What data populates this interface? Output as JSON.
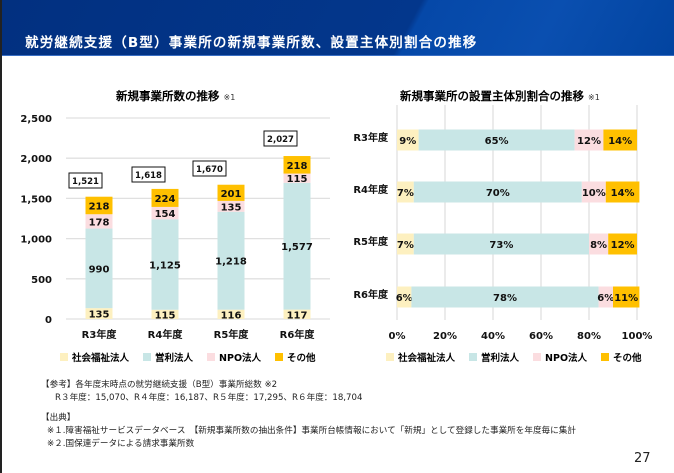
{
  "header": {
    "title": "就労継続支援（B型）事業所の新規事業所数、設置主体別割合の推移"
  },
  "colors": {
    "social_welfare": "#fdf0c0",
    "for_profit": "#c8e6e6",
    "npo": "#fbdde0",
    "other": "#ffc000",
    "gridline": "#e0e0e0"
  },
  "chart_data": [
    {
      "type": "bar",
      "stacked": true,
      "title": "新規事業所数の推移",
      "title_note": "※1",
      "categories": [
        "R3年度",
        "R4年度",
        "R5年度",
        "R6年度"
      ],
      "series": [
        {
          "name": "社会福祉法人",
          "values": [
            135,
            115,
            116,
            117
          ]
        },
        {
          "name": "営利法人",
          "values": [
            990,
            1125,
            1218,
            1577
          ]
        },
        {
          "name": "NPO法人",
          "values": [
            178,
            154,
            135,
            115
          ]
        },
        {
          "name": "その他",
          "values": [
            218,
            224,
            201,
            218
          ]
        }
      ],
      "totals": [
        1521,
        1618,
        1670,
        2027
      ],
      "total_labels": [
        "1,521",
        "1,618",
        "1,670",
        "2,027"
      ],
      "value_labels": [
        [
          "135",
          "115",
          "116",
          "117"
        ],
        [
          "990",
          "1,125",
          "1,218",
          "1,577"
        ],
        [
          "178",
          "154",
          "135",
          "115"
        ],
        [
          "218",
          "224",
          "201",
          "218"
        ]
      ],
      "yticks": [
        0,
        500,
        1000,
        1500,
        2000,
        2500
      ],
      "ytick_labels": [
        "0",
        "500",
        "1,000",
        "1,500",
        "2,000",
        "2,500"
      ],
      "ylim": [
        0,
        2500
      ],
      "xlabel": "",
      "ylabel": "",
      "grid": true,
      "legend_position": "bottom"
    },
    {
      "type": "bar",
      "orientation": "horizontal",
      "stacked": true,
      "percent": true,
      "title": "新規事業所の設置主体別割合の推移",
      "title_note": "※1",
      "categories": [
        "R3年度",
        "R4年度",
        "R5年度",
        "R6年度"
      ],
      "series": [
        {
          "name": "社会福祉法人",
          "values": [
            9,
            7,
            7,
            6
          ]
        },
        {
          "name": "営利法人",
          "values": [
            65,
            70,
            73,
            78
          ]
        },
        {
          "name": "NPO法人",
          "values": [
            12,
            10,
            8,
            6
          ]
        },
        {
          "name": "その他",
          "values": [
            14,
            14,
            12,
            11
          ]
        }
      ],
      "xticks": [
        0,
        20,
        40,
        60,
        80,
        100
      ],
      "xtick_labels": [
        "0%",
        "20%",
        "40%",
        "60%",
        "80%",
        "100%"
      ],
      "xlim": [
        0,
        100
      ],
      "grid": true,
      "legend_position": "bottom"
    }
  ],
  "legend": [
    "社会福祉法人",
    "営利法人",
    "NPO法人",
    "その他"
  ],
  "notes": {
    "reference_heading": "【参考】各年度末時点の就労継続支援（B型）事業所総数 ※2",
    "reference_values": "R３年度：15,070、R４年度：16,187、R５年度：17,295、R６年度：18,704",
    "source_heading": "【出典】",
    "source_1": "※１.障害福祉サービスデータベース　【新規事業所数の抽出条件】事業所台帳情報において「新規」として登録した事業所を年度毎に集計",
    "source_2": "※２.国保連データによる請求事業所数"
  },
  "page_number": "27"
}
